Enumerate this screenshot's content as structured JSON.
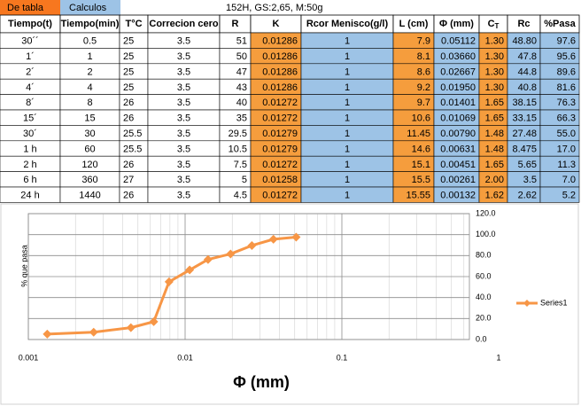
{
  "toolbar": {
    "tabs": [
      "De tabla",
      "Calculos"
    ],
    "note": "152H, GS:2,65, M:50g"
  },
  "table": {
    "header": [
      "Tiempo(t)",
      "Tiempo(min)",
      "T°C",
      "Correcion cero",
      "R",
      "K",
      "Rcor Menisco(g/l)",
      "L (cm)",
      "Φ (mm)",
      {
        "text": "C",
        "sub": "T"
      },
      "Rc",
      "%Pasa"
    ],
    "rows": [
      [
        "30´´",
        "0.5",
        "25",
        "3.5",
        "51",
        "0.01286",
        "1",
        "7.9",
        "0.05112",
        "1.30",
        "48.80",
        "97.6"
      ],
      [
        "1´",
        "1",
        "25",
        "3.5",
        "50",
        "0.01286",
        "1",
        "8.1",
        "0.03660",
        "1.30",
        "47.8",
        "95.6"
      ],
      [
        "2´",
        "2",
        "25",
        "3.5",
        "47",
        "0.01286",
        "1",
        "8.6",
        "0.02667",
        "1.30",
        "44.8",
        "89.6"
      ],
      [
        "4´",
        "4",
        "25",
        "3.5",
        "43",
        "0.01286",
        "1",
        "9.2",
        "0.01950",
        "1.30",
        "40.8",
        "81.6"
      ],
      [
        "8´",
        "8",
        "26",
        "3.5",
        "40",
        "0.01272",
        "1",
        "9.7",
        "0.01401",
        "1.65",
        "38.15",
        "76.3"
      ],
      [
        "15´",
        "15",
        "26",
        "3.5",
        "35",
        "0.01272",
        "1",
        "10.6",
        "0.01069",
        "1.65",
        "33.15",
        "66.3"
      ],
      [
        "30´",
        "30",
        "25.5",
        "3.5",
        "29.5",
        "0.01279",
        "1",
        "11.45",
        "0.00790",
        "1.48",
        "27.48",
        "55.0"
      ],
      [
        "1 h",
        "60",
        "25.5",
        "3.5",
        "10.5",
        "0.01279",
        "1",
        "14.6",
        "0.00631",
        "1.48",
        "8.475",
        "17.0"
      ],
      [
        "2 h",
        "120",
        "26",
        "3.5",
        "7.5",
        "0.01272",
        "1",
        "15.1",
        "0.00451",
        "1.65",
        "5.65",
        "11.3"
      ],
      [
        "6 h",
        "360",
        "27",
        "3.5",
        "5",
        "0.01258",
        "1",
        "15.5",
        "0.00261",
        "2.00",
        "3.5",
        "7.0"
      ],
      [
        "24 h",
        "1440",
        "26",
        "3.5",
        "4.5",
        "0.01272",
        "1",
        "15.55",
        "0.00132",
        "1.62",
        "2.62",
        "5.2"
      ]
    ]
  },
  "chart_data": {
    "type": "line",
    "xlabel": "Φ (mm)",
    "ylabel": "% que pasa",
    "xscale": "log",
    "x": [
      0.05112,
      0.0366,
      0.02667,
      0.0195,
      0.01401,
      0.01069,
      0.0079,
      0.00631,
      0.00451,
      0.00261,
      0.00132
    ],
    "series": [
      {
        "name": "Series1",
        "color": "#f79646",
        "values": [
          97.6,
          95.6,
          89.6,
          81.6,
          76.3,
          66.3,
          55.0,
          17.0,
          11.3,
          7.0,
          5.2
        ]
      }
    ],
    "xlim": [
      0.001,
      1
    ],
    "xticks": [
      0.001,
      0.01,
      0.1,
      1
    ],
    "ylim": [
      0,
      120
    ],
    "yticks": [
      {
        "value": 0,
        "label": "0.0"
      },
      {
        "value": 20,
        "label": "20.0"
      },
      {
        "value": 40,
        "label": "40.0"
      },
      {
        "value": 60,
        "label": "60.0"
      },
      {
        "value": 80,
        "label": "80.0"
      },
      {
        "value": 100,
        "label": "100.0"
      },
      {
        "value": 120,
        "label": "120.0"
      }
    ],
    "grid": true,
    "legend": "right"
  }
}
